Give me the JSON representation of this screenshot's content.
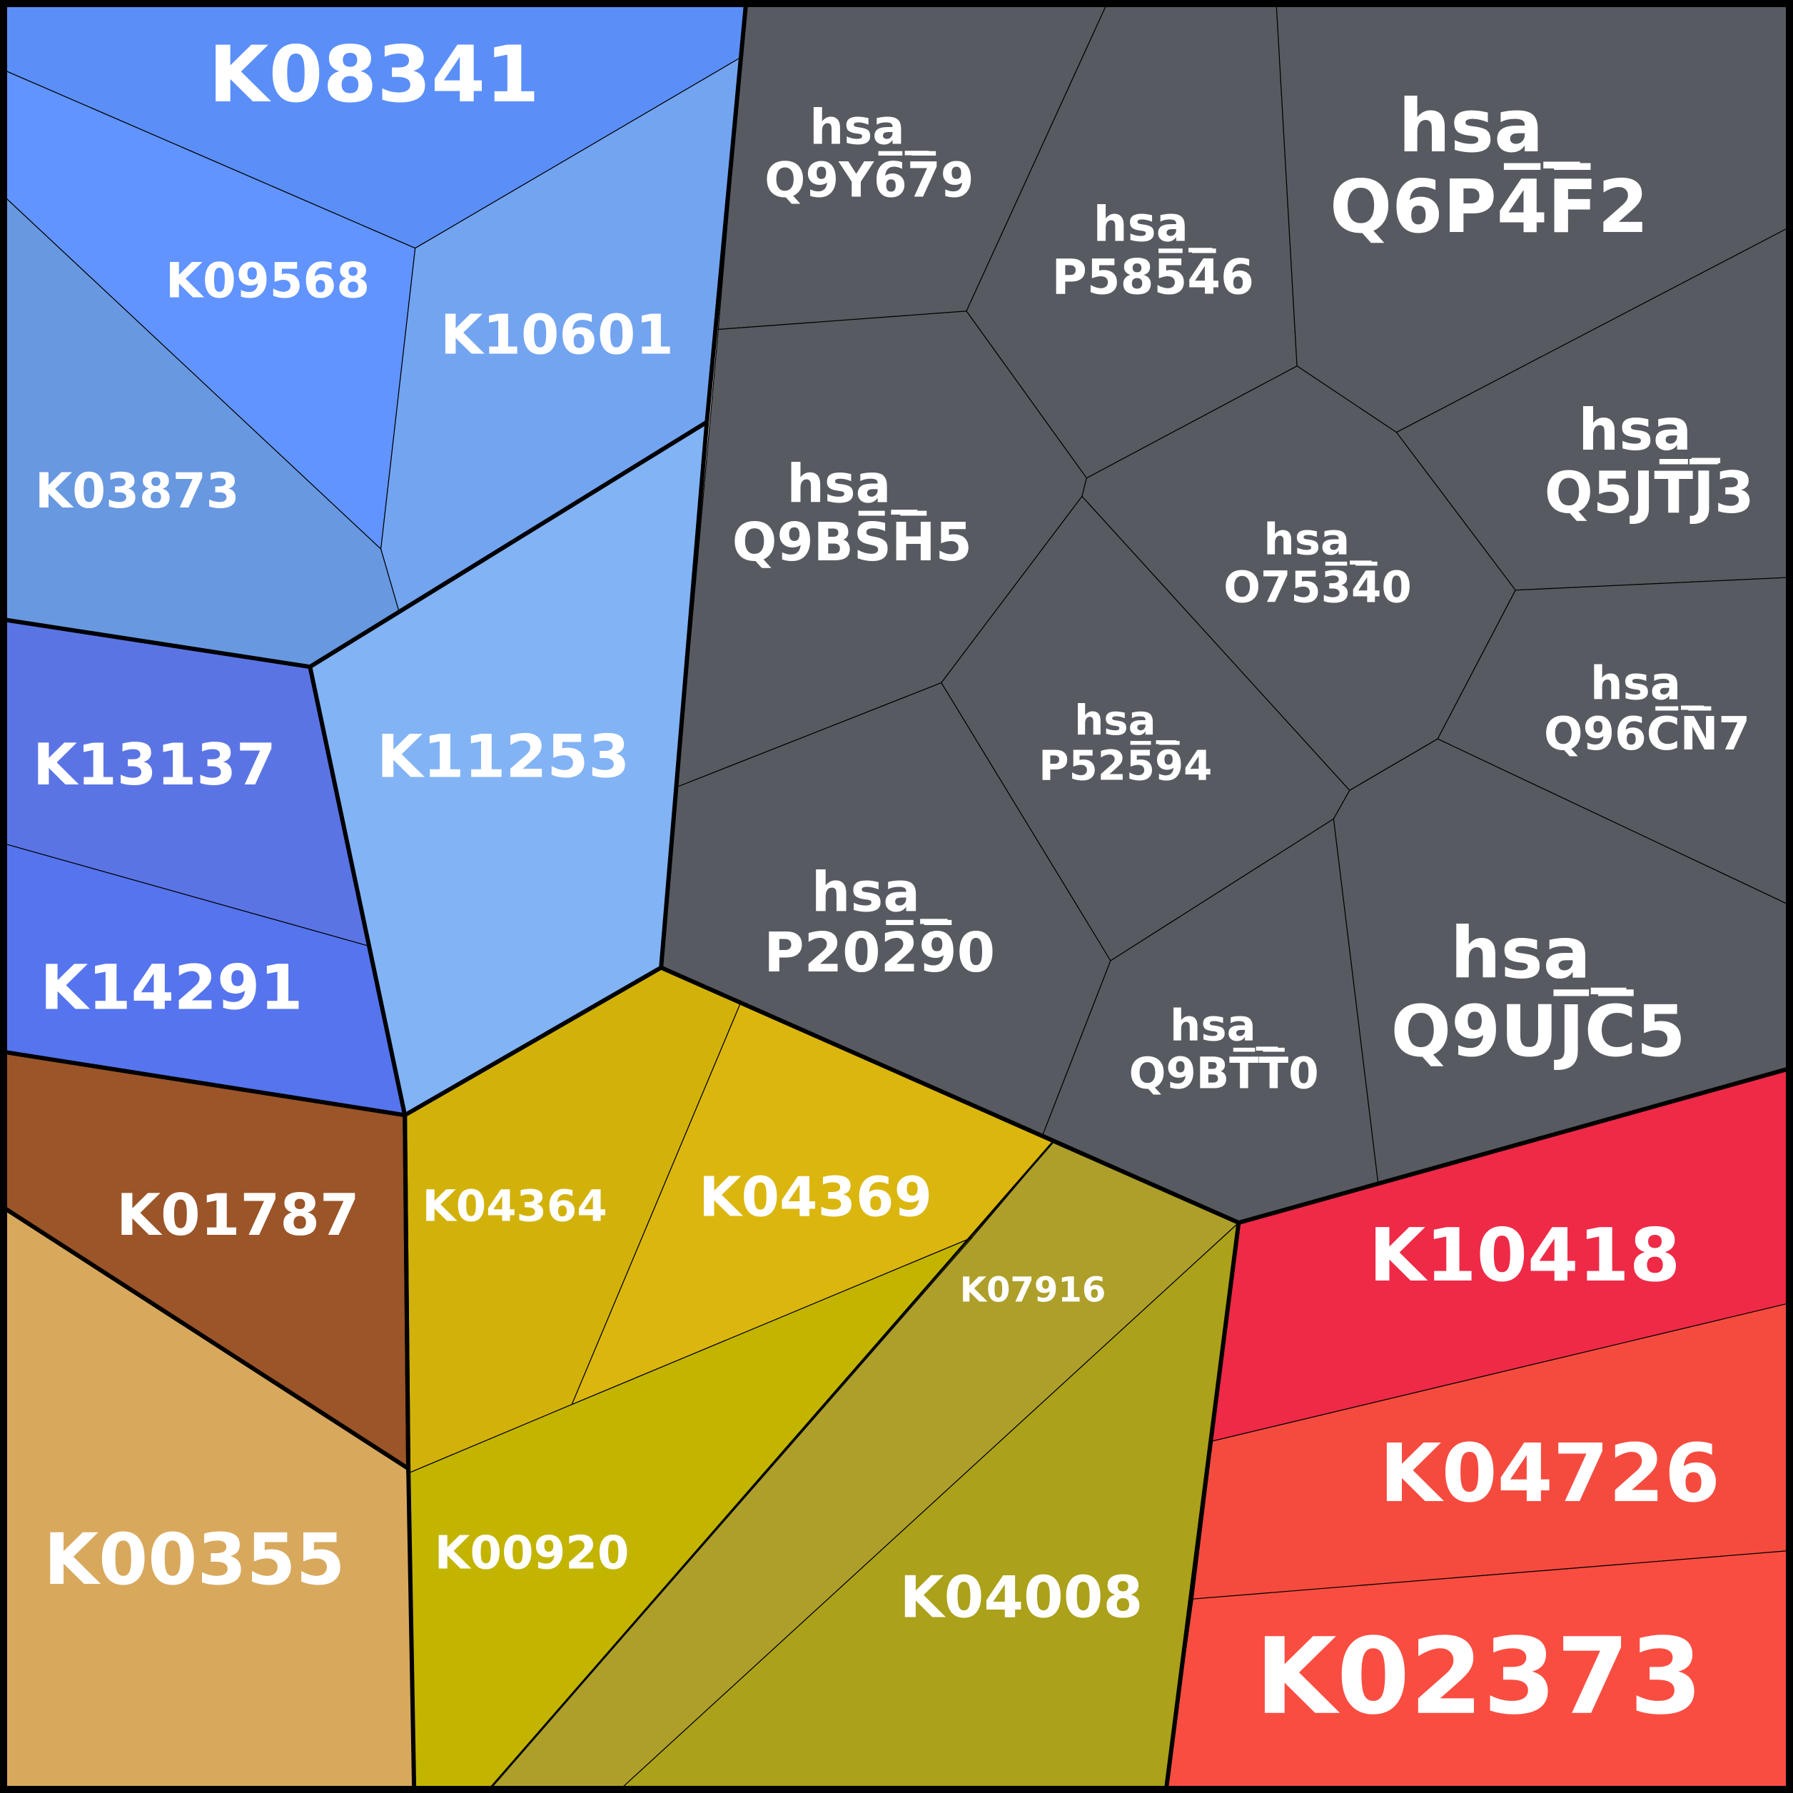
{
  "colors": {
    "blue": [
      "#5b8ff7",
      "#6194ff",
      "#73a4f0",
      "#6898e0",
      "#82b3f4",
      "#5b74e4",
      "#5574ed"
    ],
    "gray": "#575b61",
    "brown": "#9b5528",
    "tan": "#d8a95d",
    "yellow": [
      "#d2b20a",
      "#dbb60e",
      "#c3b400",
      "#ad9f2a",
      "#aba11a"
    ],
    "red": [
      "#ee2a47",
      "#f54b3f",
      "#fa4d41"
    ]
  },
  "cells": [
    {
      "id": "K08341",
      "label": "K08341",
      "color": "#5b8ff7"
    },
    {
      "id": "K09568",
      "label": "K09568",
      "color": "#6194ff"
    },
    {
      "id": "K10601",
      "label": "K10601",
      "color": "#73a4f0"
    },
    {
      "id": "K03873",
      "label": "K03873",
      "color": "#6898e0"
    },
    {
      "id": "K11253",
      "label": "K11253",
      "color": "#82b3f4"
    },
    {
      "id": "K13137",
      "label": "K13137",
      "color": "#5b74e4"
    },
    {
      "id": "K14291",
      "label": "K14291",
      "color": "#5574ed"
    },
    {
      "id": "K01787",
      "label": "K01787",
      "color": "#9b5528"
    },
    {
      "id": "K00355",
      "label": "K00355",
      "color": "#d8a95d"
    },
    {
      "id": "K04364",
      "label": "K04364",
      "color": "#d2b20a"
    },
    {
      "id": "K04369",
      "label": "K04369",
      "color": "#dbb60e"
    },
    {
      "id": "K00920",
      "label": "K00920",
      "color": "#c3b400"
    },
    {
      "id": "K07916",
      "label": "K07916",
      "color": "#ad9f2a"
    },
    {
      "id": "K04008",
      "label": "K04008",
      "color": "#aba11a"
    },
    {
      "id": "K10418",
      "label": "K10418",
      "color": "#ee2a47"
    },
    {
      "id": "K04726",
      "label": "K04726",
      "color": "#f54b3f"
    },
    {
      "id": "K02373",
      "label": "K02373",
      "color": "#fa4d41"
    },
    {
      "id": "Q9Y679",
      "label": "hsa_\nQ9Y6̅7̅9",
      "color": "#575b61"
    },
    {
      "id": "P58546",
      "label": "hsa_\nP585̅4̅6",
      "color": "#575b61"
    },
    {
      "id": "Q6P4F2",
      "label": "hsa_\nQ6P4̅F̅2",
      "color": "#575b61"
    },
    {
      "id": "Q9BSH5",
      "label": "hsa_\nQ9BS̅H̅5",
      "color": "#575b61"
    },
    {
      "id": "O75340",
      "label": "hsa_\nO753̅4̅0",
      "color": "#575b61"
    },
    {
      "id": "Q5JTJ3",
      "label": "hsa_\nQ5JT̅J̅3",
      "color": "#575b61"
    },
    {
      "id": "P52594",
      "label": "hsa_\nP525̅9̅4",
      "color": "#575b61"
    },
    {
      "id": "Q96CN7",
      "label": "hsa_\nQ96C̅N̅7",
      "color": "#575b61"
    },
    {
      "id": "P20290",
      "label": "hsa_\nP202̅9̅0",
      "color": "#575b61"
    },
    {
      "id": "Q9BTT0",
      "label": "hsa_\nQ9BT̅T̅0",
      "color": "#575b61"
    },
    {
      "id": "Q9UJC5",
      "label": "hsa_\nQ9UJ̅C̅5",
      "color": "#575b61"
    }
  ]
}
